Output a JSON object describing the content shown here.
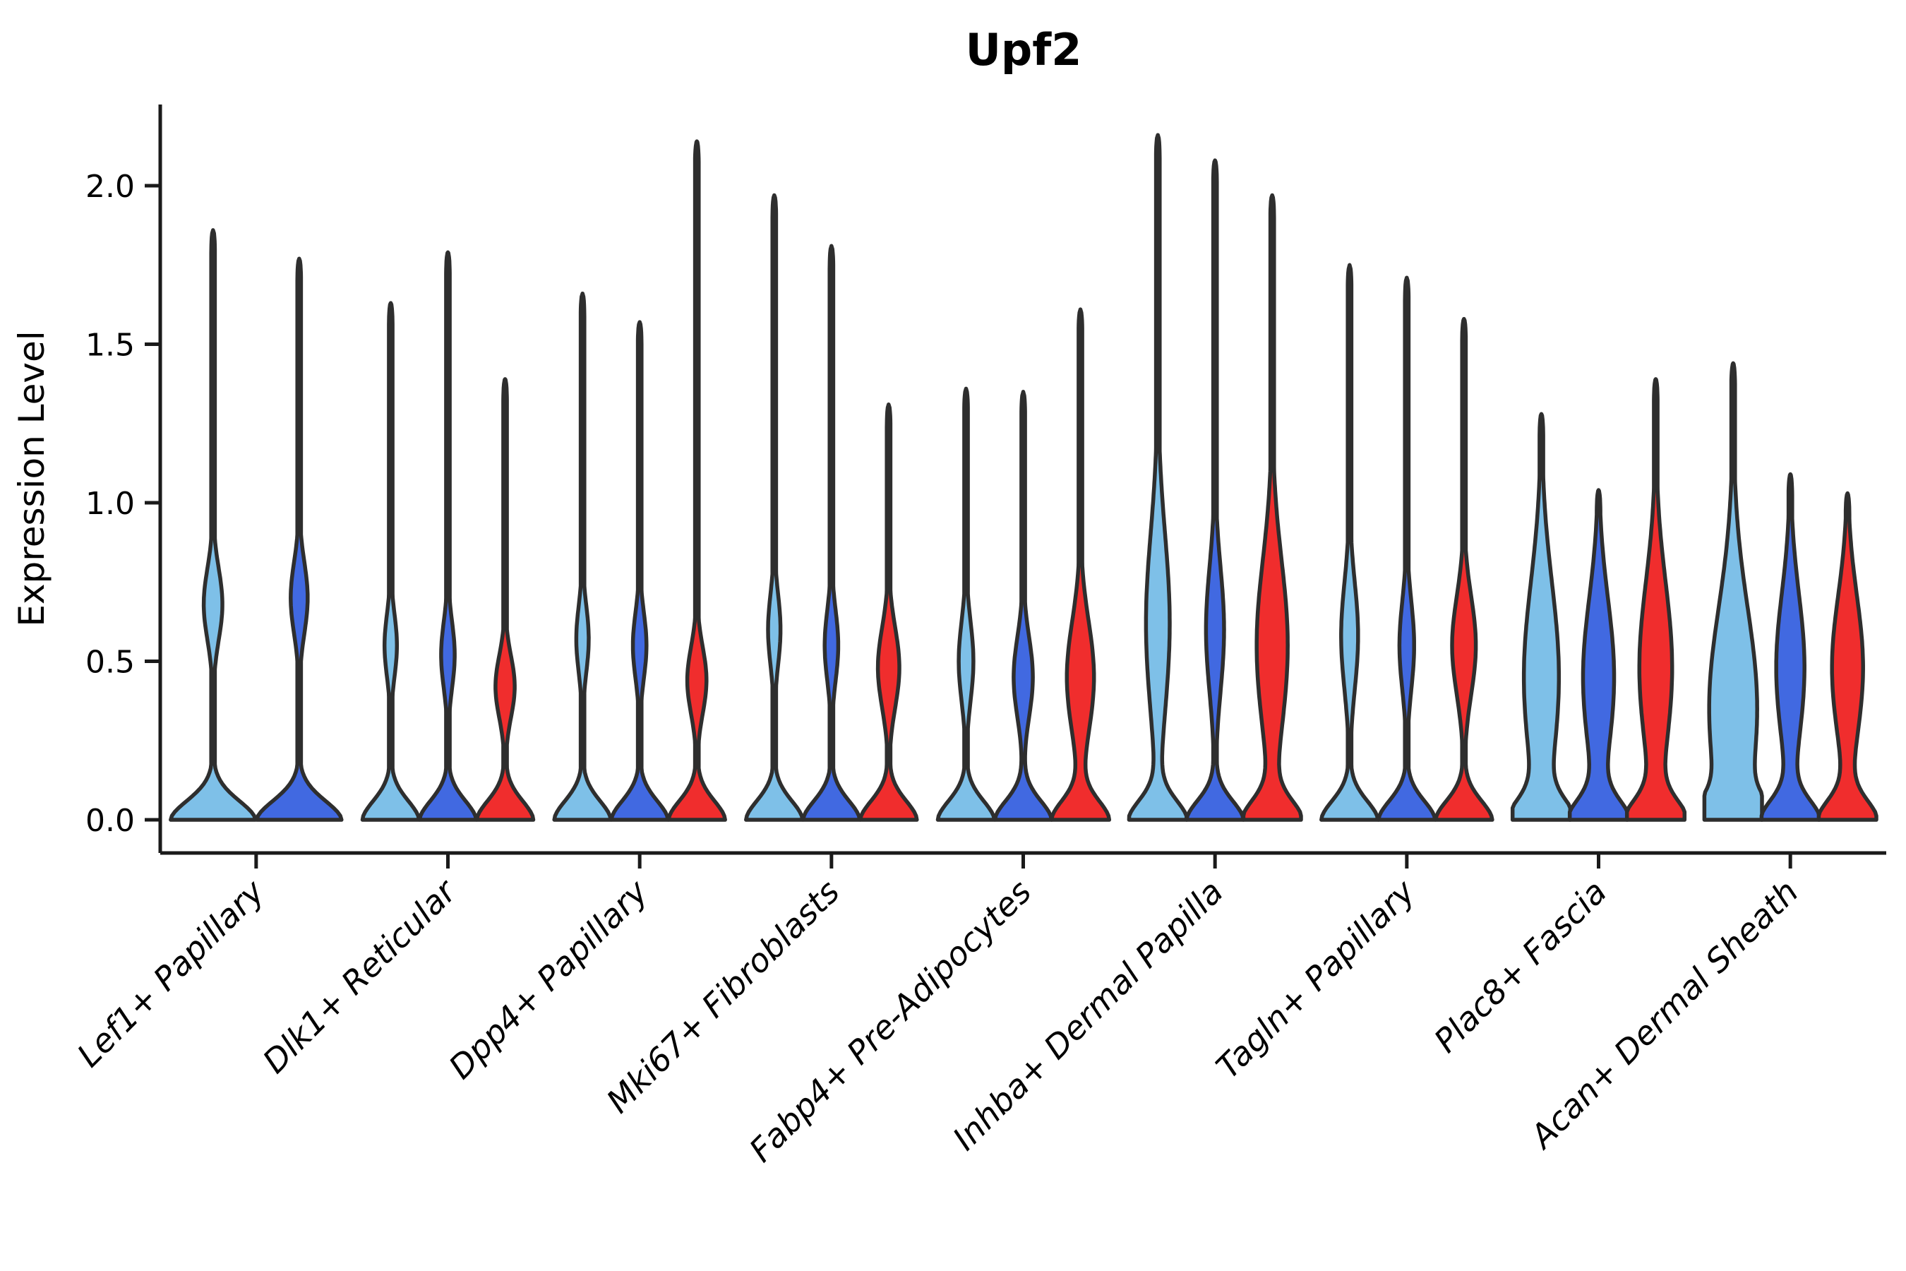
{
  "title": "Upf2",
  "chart_data": {
    "type": "violin",
    "title": "Upf2",
    "xlabel": "",
    "ylabel": "Expression Level",
    "ylim": [
      -0.105,
      2.26
    ],
    "yticks": [
      0.0,
      0.5,
      1.0,
      1.5,
      2.0
    ],
    "ytick_labels": [
      "0.0",
      "0.5",
      "1.0",
      "1.5",
      "2.0"
    ],
    "grid": "off",
    "legend": "none",
    "background_color": "#FFFFFF",
    "outline_color": "#2E2E2E",
    "axis_color": "#1A1A1A",
    "series_colors": {
      "light-blue": "#7EC0E8",
      "dark-blue": "#4169E1",
      "red": "#F02D2D"
    },
    "categories": [
      "Lef1+ Papillary",
      "Dlk1+ Reticular",
      "Dpp4+ Papillary",
      "Mki67+ Fibroblasts",
      "Fabp4+ Pre-Adipocytes",
      "Inhba+ Dermal Papilla",
      "Tagln+ Papillary",
      "Plac8+ Fascia",
      "Acan+ Dermal Sheath"
    ],
    "violins": [
      {
        "category": "Lef1+ Papillary",
        "series": "light-blue",
        "max": 1.86,
        "peak_at_zero": true,
        "bulge_center": 0.68,
        "bulge_sigma": 0.16,
        "bulge_amp": 0.22
      },
      {
        "category": "Lef1+ Papillary",
        "series": "dark-blue",
        "max": 1.77,
        "peak_at_zero": true,
        "bulge_center": 0.7,
        "bulge_sigma": 0.16,
        "bulge_amp": 0.2
      },
      {
        "category": "Dlk1+ Reticular",
        "series": "light-blue",
        "max": 1.63,
        "peak_at_zero": true,
        "bulge_center": 0.55,
        "bulge_sigma": 0.14,
        "bulge_amp": 0.22
      },
      {
        "category": "Dlk1+ Reticular",
        "series": "dark-blue",
        "max": 1.79,
        "peak_at_zero": true,
        "bulge_center": 0.52,
        "bulge_sigma": 0.15,
        "bulge_amp": 0.24
      },
      {
        "category": "Dlk1+ Reticular",
        "series": "red",
        "max": 1.39,
        "peak_at_zero": true,
        "bulge_center": 0.42,
        "bulge_sigma": 0.14,
        "bulge_amp": 0.34
      },
      {
        "category": "Dpp4+ Papillary",
        "series": "light-blue",
        "max": 1.66,
        "peak_at_zero": true,
        "bulge_center": 0.57,
        "bulge_sigma": 0.15,
        "bulge_amp": 0.22
      },
      {
        "category": "Dpp4+ Papillary",
        "series": "dark-blue",
        "max": 1.57,
        "peak_at_zero": true,
        "bulge_center": 0.55,
        "bulge_sigma": 0.15,
        "bulge_amp": 0.24
      },
      {
        "category": "Dpp4+ Papillary",
        "series": "red",
        "max": 2.14,
        "peak_at_zero": true,
        "bulge_center": 0.44,
        "bulge_sigma": 0.15,
        "bulge_amp": 0.34
      },
      {
        "category": "Mki67+ Fibroblasts",
        "series": "light-blue",
        "max": 1.97,
        "peak_at_zero": true,
        "bulge_center": 0.6,
        "bulge_sigma": 0.16,
        "bulge_amp": 0.22
      },
      {
        "category": "Mki67+ Fibroblasts",
        "series": "dark-blue",
        "max": 1.81,
        "peak_at_zero": true,
        "bulge_center": 0.55,
        "bulge_sigma": 0.16,
        "bulge_amp": 0.24
      },
      {
        "category": "Mki67+ Fibroblasts",
        "series": "red",
        "max": 1.31,
        "peak_at_zero": true,
        "bulge_center": 0.48,
        "bulge_sigma": 0.18,
        "bulge_amp": 0.38
      },
      {
        "category": "Fabp4+ Pre-Adipocytes",
        "series": "light-blue",
        "max": 1.36,
        "peak_at_zero": true,
        "bulge_center": 0.5,
        "bulge_sigma": 0.18,
        "bulge_amp": 0.26
      },
      {
        "category": "Fabp4+ Pre-Adipocytes",
        "series": "dark-blue",
        "max": 1.35,
        "peak_at_zero": true,
        "bulge_center": 0.45,
        "bulge_sigma": 0.18,
        "bulge_amp": 0.34
      },
      {
        "category": "Fabp4+ Pre-Adipocytes",
        "series": "red",
        "max": 1.61,
        "peak_at_zero": true,
        "bulge_center": 0.45,
        "bulge_sigma": 0.25,
        "bulge_amp": 0.48
      },
      {
        "category": "Inhba+ Dermal Papilla",
        "series": "light-blue",
        "max": 2.16,
        "peak_at_zero": true,
        "bulge_center": 0.62,
        "bulge_sigma": 0.4,
        "bulge_amp": 0.42
      },
      {
        "category": "Inhba+ Dermal Papilla",
        "series": "dark-blue",
        "max": 2.08,
        "peak_at_zero": true,
        "bulge_center": 0.6,
        "bulge_sigma": 0.28,
        "bulge_amp": 0.32
      },
      {
        "category": "Inhba+ Dermal Papilla",
        "series": "red",
        "max": 1.97,
        "peak_at_zero": true,
        "bulge_center": 0.55,
        "bulge_sigma": 0.38,
        "bulge_amp": 0.55
      },
      {
        "category": "Tagln+ Papillary",
        "series": "light-blue",
        "max": 1.75,
        "peak_at_zero": true,
        "bulge_center": 0.58,
        "bulge_sigma": 0.24,
        "bulge_amp": 0.3
      },
      {
        "category": "Tagln+ Papillary",
        "series": "dark-blue",
        "max": 1.71,
        "peak_at_zero": true,
        "bulge_center": 0.55,
        "bulge_sigma": 0.2,
        "bulge_amp": 0.26
      },
      {
        "category": "Tagln+ Papillary",
        "series": "red",
        "max": 1.58,
        "peak_at_zero": true,
        "bulge_center": 0.55,
        "bulge_sigma": 0.22,
        "bulge_amp": 0.42
      },
      {
        "category": "Plac8+ Fascia",
        "series": "light-blue",
        "max": 1.28,
        "peak_at_zero": true,
        "bulge_center": 0.45,
        "bulge_sigma": 0.42,
        "bulge_amp": 0.62
      },
      {
        "category": "Plac8+ Fascia",
        "series": "dark-blue",
        "max": 1.04,
        "peak_at_zero": true,
        "bulge_center": 0.45,
        "bulge_sigma": 0.35,
        "bulge_amp": 0.55
      },
      {
        "category": "Plac8+ Fascia",
        "series": "red",
        "max": 1.39,
        "peak_at_zero": true,
        "bulge_center": 0.48,
        "bulge_sigma": 0.38,
        "bulge_amp": 0.58
      },
      {
        "category": "Acan+ Dermal Sheath",
        "series": "light-blue",
        "max": 1.44,
        "peak_at_zero": true,
        "bulge_center": 0.35,
        "bulge_sigma": 0.45,
        "bulge_amp": 0.85
      },
      {
        "category": "Acan+ Dermal Sheath",
        "series": "dark-blue",
        "max": 1.09,
        "peak_at_zero": true,
        "bulge_center": 0.48,
        "bulge_sigma": 0.33,
        "bulge_amp": 0.5
      },
      {
        "category": "Acan+ Dermal Sheath",
        "series": "red",
        "max": 1.03,
        "peak_at_zero": true,
        "bulge_center": 0.48,
        "bulge_sigma": 0.32,
        "bulge_amp": 0.55
      }
    ]
  }
}
